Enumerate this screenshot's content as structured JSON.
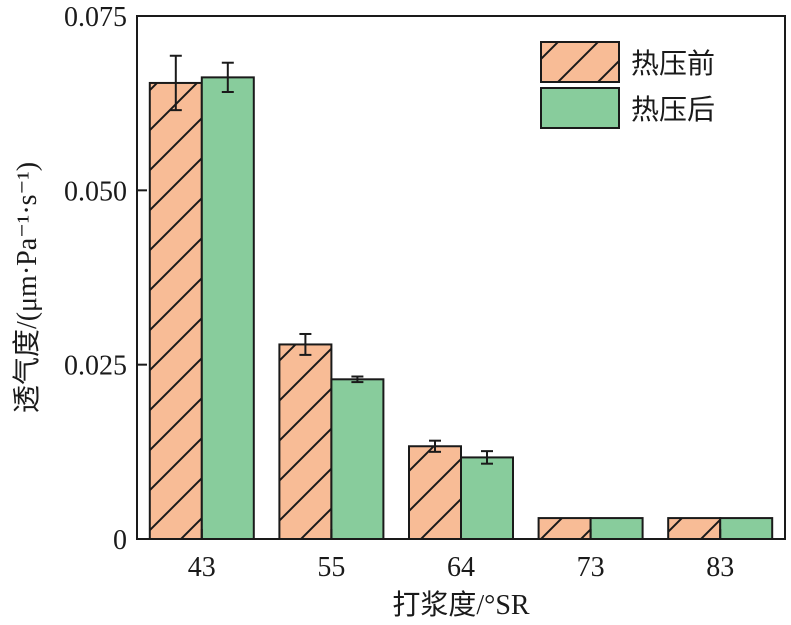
{
  "chart_data": {
    "type": "bar",
    "title": "",
    "xlabel": "打浆度/°SR",
    "ylabel": "透气度/(μm·Pa⁻¹·s⁻¹)",
    "categories": [
      "43",
      "55",
      "64",
      "73",
      "83"
    ],
    "ylim": [
      0,
      0.075
    ],
    "yticks": [
      "0",
      "0.025",
      "0.050",
      "0.075"
    ],
    "ytick_values": [
      0,
      0.025,
      0.05,
      0.075
    ],
    "grid": false,
    "legend_position": "top-right",
    "series": [
      {
        "name": "热压前",
        "values": [
          0.0654,
          0.0279,
          0.0133,
          0.003,
          0.003
        ],
        "errors": [
          0.0039,
          0.0015,
          0.0008,
          0,
          0
        ],
        "color": "#f8bc96",
        "pattern": "hatch"
      },
      {
        "name": "热压后",
        "values": [
          0.0662,
          0.0229,
          0.0117,
          0.003,
          0.003
        ],
        "errors": [
          0.0021,
          0.0004,
          0.0009,
          0,
          0
        ],
        "color": "#88cc9c",
        "pattern": "solid"
      }
    ]
  }
}
